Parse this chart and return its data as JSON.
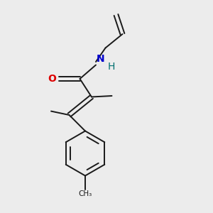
{
  "background_color": "#ececec",
  "bond_color": "#1a1a1a",
  "bond_width": 1.4,
  "O_color": "#dd0000",
  "N_color": "#0000cc",
  "H_color": "#007070",
  "figsize": [
    3.0,
    3.0
  ],
  "dpi": 100,
  "xlim": [
    0,
    10
  ],
  "ylim": [
    0,
    10
  ]
}
